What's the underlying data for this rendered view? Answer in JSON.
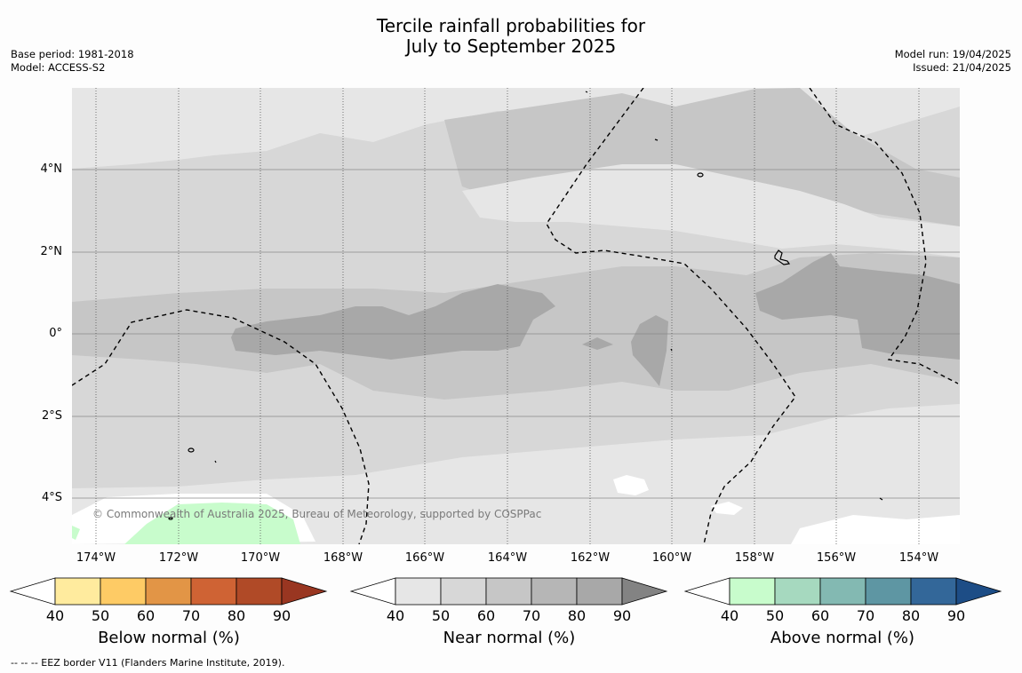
{
  "title": {
    "line1": "Tercile rainfall probabilities for",
    "line2": "July to September 2025"
  },
  "meta_left": {
    "base_period": "Base period: 1981-2018",
    "model": "Model: ACCESS-S2"
  },
  "meta_right": {
    "model_run": "Model run: 19/04/2025",
    "issued": "Issued: 21/04/2025"
  },
  "map": {
    "latitude_labels": [
      "4°N",
      "2°N",
      "0°",
      "2°S",
      "4°S"
    ],
    "longitude_labels": [
      "174°W",
      "172°W",
      "170°W",
      "168°W",
      "166°W",
      "164°W",
      "162°W",
      "160°W",
      "158°W",
      "156°W",
      "154°W"
    ],
    "copyright": "© Commonwealth of Australia 2025, Bureau of Meteorology, supported by COSPPac",
    "dominant_category": "Near normal",
    "colors": {
      "near_40_50": "#e6e6e6",
      "near_50_60": "#d7d7d7",
      "near_60_70": "#c6c6c6",
      "near_80_90": "#a8a8a8",
      "above_40_50": "#c8fccc"
    }
  },
  "legends": [
    {
      "label": "Below normal (%)",
      "ticks": [
        "40",
        "50",
        "60",
        "70",
        "80",
        "90"
      ],
      "colors": [
        "#ffffff",
        "#ffeb9e",
        "#fecb65",
        "#e29546",
        "#cf6334",
        "#b04a27",
        "#993621"
      ]
    },
    {
      "label": "Near normal (%)",
      "ticks": [
        "40",
        "50",
        "60",
        "70",
        "80",
        "90"
      ],
      "colors": [
        "#ffffff",
        "#e6e6e6",
        "#d7d7d7",
        "#c6c6c6",
        "#b6b6b6",
        "#a8a8a8",
        "#838383"
      ]
    },
    {
      "label": "Above normal (%)",
      "ticks": [
        "40",
        "50",
        "60",
        "70",
        "80",
        "90"
      ],
      "colors": [
        "#ffffff",
        "#c8fccc",
        "#a6d9bf",
        "#83b9b2",
        "#5e96a3",
        "#336799",
        "#1d4d86"
      ]
    }
  ],
  "footer": "--  --  -- EEZ border V11 (Flanders Marine Institute, 2019)."
}
